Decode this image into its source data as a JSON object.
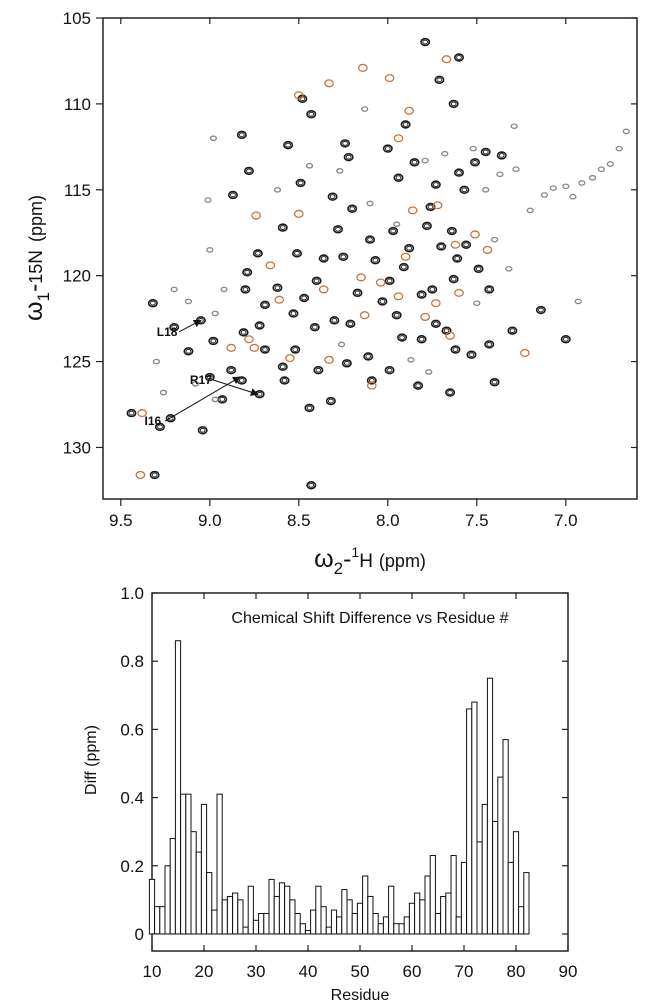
{
  "chart_data": [
    {
      "type": "scatter",
      "title": "",
      "xlabel": "ω2-1H (ppm)",
      "xlabel_parts": {
        "symbol": "ω",
        "sub": "2",
        "mid": "-",
        "sup": "1",
        "unit": "H",
        "paren": "(ppm)"
      },
      "ylabel": "ω1-15N (ppm)",
      "ylabel_parts": {
        "symbol": "ω",
        "sub": "1",
        "mid": "-",
        "sup": "15",
        "unit": "N",
        "paren": "(ppm)"
      },
      "xlim": [
        9.6,
        6.6
      ],
      "ylim": [
        105,
        133
      ],
      "x_reversed": true,
      "y_reversed": true,
      "xticks": [
        "9.5",
        "9.0",
        "8.5",
        "8.0",
        "7.5",
        "7.0"
      ],
      "yticks": [
        "105",
        "110",
        "115",
        "120",
        "125",
        "130"
      ],
      "xtick_values": [
        9.5,
        9.0,
        8.5,
        8.0,
        7.5,
        7.0
      ],
      "ytick_values": [
        105,
        110,
        115,
        120,
        125,
        130
      ],
      "grid": false,
      "colors": {
        "series_a": "#1a1a1a",
        "series_b": "#c8743c",
        "series_c": "#888888"
      },
      "annotations": [
        {
          "text": "L18",
          "x": 9.24,
          "y": 123.5,
          "arrow_to": [
            9.05,
            122.6
          ]
        },
        {
          "text": "R17",
          "x": 9.05,
          "y": 126.3,
          "arrow_to": [
            8.73,
            126.9
          ]
        },
        {
          "text": "I16",
          "x": 9.32,
          "y": 128.7,
          "arrow_to": [
            8.83,
            125.9
          ]
        }
      ],
      "series": [
        {
          "color_key": "series_a",
          "points": [
            [
              7.79,
              106.4
            ],
            [
              7.6,
              107.3
            ],
            [
              7.71,
              108.6
            ],
            [
              7.63,
              110.0
            ],
            [
              7.9,
              111.2
            ],
            [
              8.0,
              112.6
            ],
            [
              8.24,
              112.3
            ],
            [
              8.22,
              113.1
            ],
            [
              8.48,
              109.7
            ],
            [
              8.43,
              110.6
            ],
            [
              8.82,
              111.8
            ],
            [
              8.56,
              112.4
            ],
            [
              8.87,
              115.3
            ],
            [
              8.49,
              114.6
            ],
            [
              8.2,
              116.1
            ],
            [
              8.28,
              117.3
            ],
            [
              7.94,
              114.3
            ],
            [
              7.85,
              113.4
            ],
            [
              7.73,
              114.7
            ],
            [
              7.6,
              114.0
            ],
            [
              7.51,
              113.4
            ],
            [
              7.45,
              112.8
            ],
            [
              7.36,
              113.0
            ],
            [
              7.78,
              117.1
            ],
            [
              7.7,
              118.3
            ],
            [
              7.64,
              117.4
            ],
            [
              7.61,
              119.0
            ],
            [
              7.56,
              118.2
            ],
            [
              7.49,
              119.6
            ],
            [
              7.43,
              120.8
            ],
            [
              7.63,
              120.2
            ],
            [
              7.75,
              120.8
            ],
            [
              7.81,
              121.1
            ],
            [
              7.91,
              119.5
            ],
            [
              7.99,
              120.3
            ],
            [
              8.07,
              119.1
            ],
            [
              8.1,
              117.9
            ],
            [
              8.36,
              119.0
            ],
            [
              8.4,
              120.3
            ],
            [
              8.47,
              121.3
            ],
            [
              8.51,
              118.7
            ],
            [
              8.59,
              117.2
            ],
            [
              8.73,
              118.7
            ],
            [
              8.79,
              119.8
            ],
            [
              8.8,
              120.8
            ],
            [
              8.69,
              121.7
            ],
            [
              8.62,
              120.7
            ],
            [
              8.53,
              122.2
            ],
            [
              8.41,
              123.0
            ],
            [
              8.3,
              122.6
            ],
            [
              8.21,
              122.8
            ],
            [
              8.03,
              121.5
            ],
            [
              7.95,
              122.3
            ],
            [
              7.92,
              123.6
            ],
            [
              7.81,
              123.7
            ],
            [
              7.73,
              122.8
            ],
            [
              7.67,
              123.2
            ],
            [
              7.62,
              124.3
            ],
            [
              7.53,
              124.6
            ],
            [
              7.43,
              124.0
            ],
            [
              7.3,
              123.2
            ],
            [
              7.14,
              122.0
            ],
            [
              7.0,
              123.7
            ],
            [
              7.4,
              126.2
            ],
            [
              7.65,
              126.8
            ],
            [
              7.83,
              126.4
            ],
            [
              7.99,
              125.5
            ],
            [
              8.11,
              124.7
            ],
            [
              8.23,
              125.1
            ],
            [
              8.39,
              125.5
            ],
            [
              8.52,
              124.3
            ],
            [
              8.59,
              125.3
            ],
            [
              8.69,
              124.3
            ],
            [
              8.81,
              123.3
            ],
            [
              8.98,
              123.8
            ],
            [
              9.12,
              124.4
            ],
            [
              9.2,
              123.0
            ],
            [
              9.0,
              125.9
            ],
            [
              8.88,
              125.5
            ],
            [
              8.82,
              126.1
            ],
            [
              8.72,
              126.9
            ],
            [
              8.93,
              127.2
            ],
            [
              9.04,
              129.0
            ],
            [
              9.22,
              128.3
            ],
            [
              9.28,
              128.8
            ],
            [
              9.44,
              128.0
            ],
            [
              8.44,
              127.7
            ],
            [
              8.32,
              127.3
            ],
            [
              8.09,
              126.1
            ],
            [
              8.43,
              132.2
            ],
            [
              9.31,
              131.6
            ],
            [
              9.05,
              122.6
            ],
            [
              8.58,
              126.1
            ],
            [
              8.17,
              121.0
            ],
            [
              8.25,
              118.9
            ],
            [
              7.97,
              117.4
            ],
            [
              7.88,
              118.4
            ],
            [
              7.76,
              116.0
            ],
            [
              8.31,
              115.4
            ],
            [
              8.78,
              113.9
            ],
            [
              9.32,
              121.6
            ],
            [
              8.72,
              122.9
            ],
            [
              7.57,
              115.0
            ]
          ]
        },
        {
          "color_key": "series_b",
          "points": [
            [
              7.67,
              107.4
            ],
            [
              8.14,
              107.9
            ],
            [
              7.99,
              108.5
            ],
            [
              8.33,
              108.8
            ],
            [
              8.5,
              109.5
            ],
            [
              7.88,
              110.4
            ],
            [
              7.94,
              112.0
            ],
            [
              7.86,
              116.2
            ],
            [
              7.72,
              115.9
            ],
            [
              7.51,
              117.6
            ],
            [
              7.62,
              118.2
            ],
            [
              7.9,
              118.9
            ],
            [
              7.94,
              121.2
            ],
            [
              8.04,
              120.4
            ],
            [
              8.15,
              120.1
            ],
            [
              8.36,
              120.8
            ],
            [
              8.61,
              121.4
            ],
            [
              8.74,
              116.5
            ],
            [
              8.5,
              116.4
            ],
            [
              8.66,
              119.4
            ],
            [
              8.78,
              123.7
            ],
            [
              8.75,
              124.2
            ],
            [
              8.55,
              124.8
            ],
            [
              8.33,
              124.9
            ],
            [
              7.79,
              122.4
            ],
            [
              7.65,
              123.5
            ],
            [
              7.6,
              121.0
            ],
            [
              7.44,
              118.5
            ],
            [
              8.09,
              126.4
            ],
            [
              9.39,
              131.6
            ],
            [
              9.38,
              128.0
            ],
            [
              8.88,
              124.2
            ],
            [
              7.23,
              124.5
            ],
            [
              8.13,
              122.3
            ],
            [
              7.73,
              121.6
            ]
          ]
        },
        {
          "color_key": "series_c",
          "points": [
            [
              8.98,
              112.0
            ],
            [
              9.01,
              115.6
            ],
            [
              8.13,
              110.3
            ],
            [
              7.29,
              111.3
            ],
            [
              7.2,
              116.2
            ],
            [
              7.12,
              115.3
            ],
            [
              7.07,
              114.9
            ],
            [
              7.0,
              114.8
            ],
            [
              6.96,
              115.4
            ],
            [
              6.91,
              114.6
            ],
            [
              6.85,
              114.3
            ],
            [
              6.8,
              113.8
            ],
            [
              6.75,
              113.5
            ],
            [
              6.7,
              112.6
            ],
            [
              6.66,
              111.6
            ],
            [
              7.32,
              119.6
            ],
            [
              7.4,
              117.9
            ],
            [
              7.37,
              114.1
            ],
            [
              7.28,
              113.8
            ],
            [
              7.45,
              115.0
            ],
            [
              7.52,
              112.6
            ],
            [
              9.2,
              120.8
            ],
            [
              9.12,
              121.5
            ],
            [
              9.0,
              118.5
            ],
            [
              8.92,
              120.8
            ],
            [
              9.26,
              126.8
            ],
            [
              9.3,
              125.0
            ],
            [
              9.08,
              126.3
            ],
            [
              8.97,
              122.2
            ],
            [
              7.95,
              117.0
            ],
            [
              8.1,
              115.8
            ],
            [
              8.27,
              113.9
            ],
            [
              8.44,
              113.6
            ],
            [
              8.62,
              115.0
            ],
            [
              7.5,
              121.6
            ],
            [
              7.77,
              125.6
            ],
            [
              7.87,
              124.9
            ],
            [
              8.26,
              124.0
            ],
            [
              8.97,
              127.2
            ],
            [
              6.93,
              121.5
            ],
            [
              7.79,
              113.3
            ],
            [
              7.68,
              112.9
            ]
          ]
        }
      ]
    },
    {
      "type": "bar",
      "title": "Chemical Shift Difference vs Residue #",
      "xlabel": "Residue",
      "ylabel": "Diff (ppm)",
      "xlim": [
        10,
        90
      ],
      "ylim": [
        -0.05,
        1.0
      ],
      "xticks": [
        "10",
        "20",
        "30",
        "40",
        "50",
        "60",
        "70",
        "80",
        "90"
      ],
      "yticks": [
        "0",
        "0.2",
        "0.4",
        "0.6",
        "0.8",
        "1.0"
      ],
      "xtick_values": [
        10,
        20,
        30,
        40,
        50,
        60,
        70,
        80,
        90
      ],
      "ytick_values": [
        0,
        0.2,
        0.4,
        0.6,
        0.8,
        1.0
      ],
      "grid": false,
      "legend": "none",
      "categories": [
        10,
        11,
        12,
        13,
        14,
        15,
        16,
        17,
        18,
        19,
        20,
        21,
        22,
        23,
        24,
        25,
        26,
        27,
        28,
        29,
        30,
        31,
        32,
        33,
        34,
        35,
        36,
        37,
        38,
        39,
        40,
        41,
        42,
        43,
        44,
        45,
        46,
        47,
        48,
        49,
        50,
        51,
        52,
        53,
        54,
        55,
        56,
        57,
        58,
        59,
        60,
        61,
        62,
        63,
        64,
        65,
        66,
        67,
        68,
        69,
        70,
        71,
        72,
        73,
        74,
        75,
        76,
        77,
        78,
        79,
        80,
        81,
        82
      ],
      "values": [
        0.16,
        0.08,
        0.08,
        0.2,
        0.28,
        0.86,
        0.41,
        0.41,
        0.3,
        0.24,
        0.38,
        0.18,
        0.07,
        0.41,
        0.1,
        0.11,
        0.12,
        0.1,
        0.02,
        0.14,
        0.04,
        0.06,
        0.06,
        0.16,
        0.11,
        0.15,
        0.14,
        0.1,
        0.06,
        0.03,
        0.01,
        0.07,
        0.14,
        0.08,
        0.02,
        0.07,
        0.05,
        0.13,
        0.1,
        0.06,
        0.09,
        0.17,
        0.11,
        0.06,
        0.03,
        0.05,
        0.14,
        0.03,
        0.03,
        0.05,
        0.09,
        0.12,
        0.1,
        0.17,
        0.23,
        0.06,
        0.11,
        0.12,
        0.23,
        0.05,
        0.21,
        0.66,
        0.68,
        0.27,
        0.38,
        0.75,
        0.33,
        0.46,
        0.57,
        0.21,
        0.3,
        0.08,
        0.18
      ]
    }
  ]
}
